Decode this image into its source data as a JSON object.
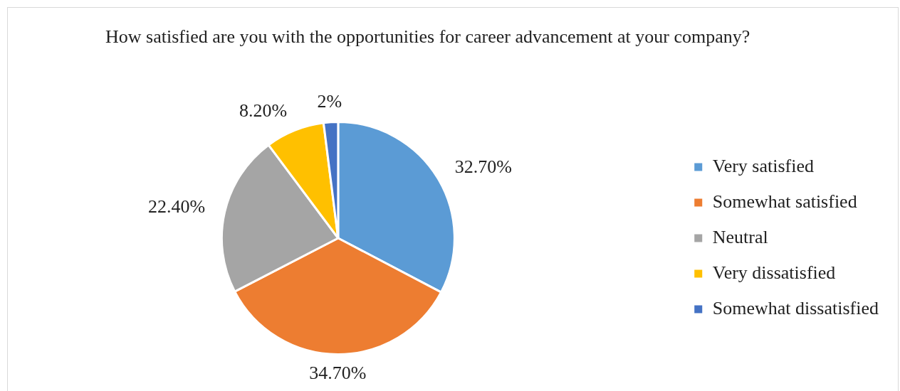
{
  "chart_data": {
    "type": "pie",
    "title": "How satisfied are you with the opportunities for career advancement at your company?",
    "categories": [
      "Very satisfied",
      "Somewhat satisfied",
      "Neutral",
      "Very dissatisfied",
      "Somewhat dissatisfied"
    ],
    "values": [
      32.7,
      34.7,
      22.4,
      8.2,
      2
    ],
    "colors": [
      "#5b9bd5",
      "#ed7d31",
      "#a5a5a5",
      "#ffc000",
      "#4472c4"
    ],
    "value_labels": [
      "32.70%",
      "34.70%",
      "22.40%",
      "8.20%",
      "2%"
    ],
    "legend": "right"
  }
}
